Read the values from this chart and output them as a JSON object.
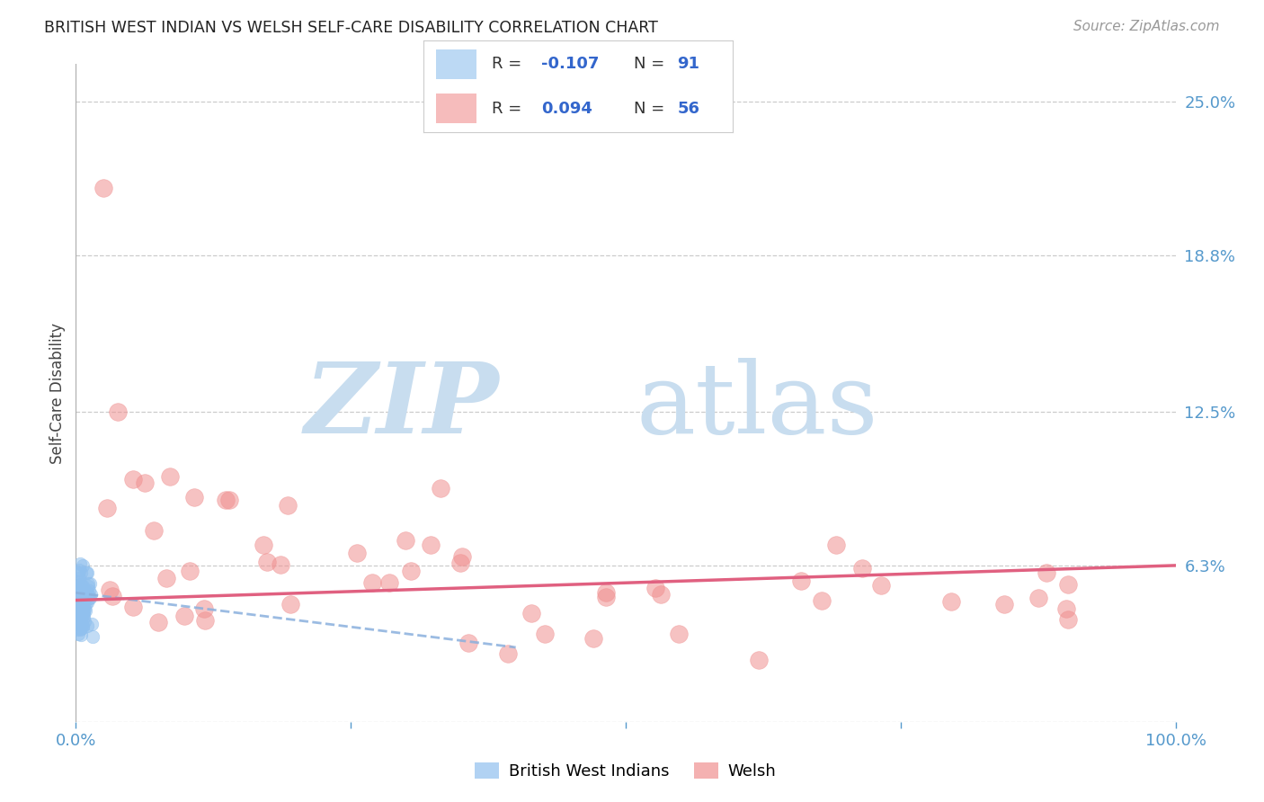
{
  "title": "BRITISH WEST INDIAN VS WELSH SELF-CARE DISABILITY CORRELATION CHART",
  "source": "Source: ZipAtlas.com",
  "ylabel": "Self-Care Disability",
  "xlim": [
    0,
    1.0
  ],
  "ylim": [
    0.0,
    0.265
  ],
  "yticks_right": [
    0.0,
    0.063,
    0.125,
    0.188,
    0.25
  ],
  "yticklabels_right": [
    "",
    "6.3%",
    "12.5%",
    "18.8%",
    "25.0%"
  ],
  "legend_r_blue": "-0.107",
  "legend_n_blue": "91",
  "legend_r_pink": "0.094",
  "legend_n_pink": "56",
  "blue_color": "#90C0EE",
  "pink_color": "#F09090",
  "trendline_blue_color": "#8AB0DD",
  "trendline_pink_color": "#E06080",
  "axis_color": "#5599CC",
  "background_color": "#ffffff",
  "grid_color": "#cccccc",
  "watermark_zip_color": "#C8DDEF",
  "watermark_atlas_color": "#C8DDEF",
  "legend_text_color": "#333333",
  "legend_value_color": "#3366CC"
}
